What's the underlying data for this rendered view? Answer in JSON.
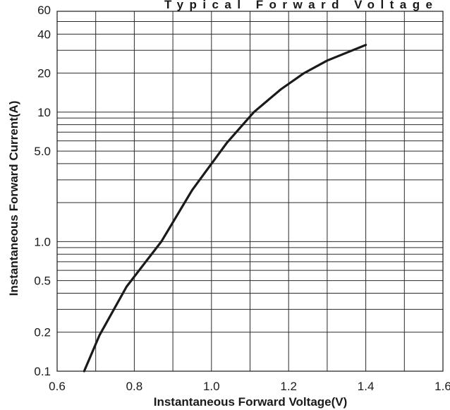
{
  "chart_data": {
    "type": "line",
    "title_fragment": "Typical Forward Voltage",
    "xlabel": "Instantaneous Forward Voltage(V)",
    "ylabel": "Instantaneous Forward Current(A)",
    "x_scale": "linear",
    "y_scale": "log",
    "xlim": [
      0.6,
      1.6
    ],
    "ylim": [
      0.1,
      60
    ],
    "x_ticks": [
      {
        "value": 0.6,
        "label": "0.6"
      },
      {
        "value": 0.8,
        "label": "0.8"
      },
      {
        "value": 1.0,
        "label": "1.0"
      },
      {
        "value": 1.2,
        "label": "1.2"
      },
      {
        "value": 1.4,
        "label": "1.4"
      },
      {
        "value": 1.6,
        "label": "1.6"
      }
    ],
    "y_ticks": [
      {
        "value": 0.1,
        "label": "0.1"
      },
      {
        "value": 0.2,
        "label": "0.2"
      },
      {
        "value": 0.5,
        "label": "0.5"
      },
      {
        "value": 1.0,
        "label": "1.0"
      },
      {
        "value": 5.0,
        "label": "5.0"
      },
      {
        "value": 10,
        "label": "10"
      },
      {
        "value": 20,
        "label": "20"
      },
      {
        "value": 40,
        "label": "40"
      },
      {
        "value": 60,
        "label": "60"
      }
    ],
    "x_gridlines": [
      0.6,
      0.7,
      0.8,
      0.9,
      1.0,
      1.1,
      1.2,
      1.3,
      1.4,
      1.5,
      1.6
    ],
    "y_gridlines": [
      0.1,
      0.2,
      0.3,
      0.4,
      0.5,
      0.6,
      0.7,
      0.8,
      0.9,
      1,
      2,
      3,
      4,
      5,
      6,
      7,
      8,
      9,
      10,
      20,
      30,
      40,
      50,
      60
    ],
    "grid": true,
    "series": [
      {
        "color": "#1a1a1a",
        "x": [
          0.67,
          0.71,
          0.78,
          0.87,
          0.95,
          1.04,
          1.11,
          1.18,
          1.24,
          1.3,
          1.4
        ],
        "y": [
          0.1,
          0.19,
          0.45,
          1.0,
          2.5,
          5.8,
          10,
          15,
          20,
          25,
          33
        ]
      }
    ]
  }
}
